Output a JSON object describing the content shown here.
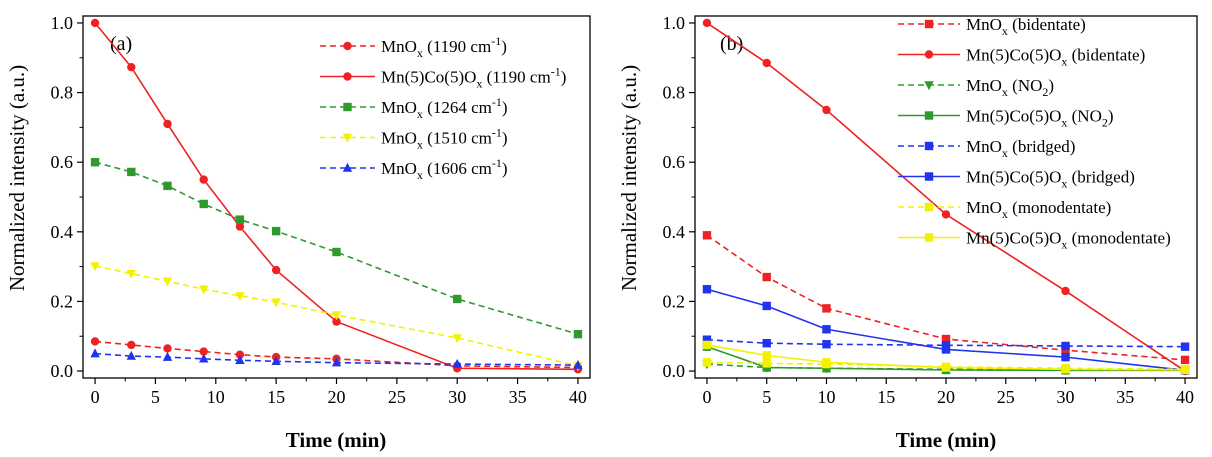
{
  "chart_data": [
    {
      "type": "line",
      "panel_label": "(a)",
      "xlabel": "Time (min)",
      "ylabel": "Normalized intensity (a.u.)",
      "xlim": [
        -1,
        41
      ],
      "ylim": [
        -0.02,
        1.02
      ],
      "xticks": [
        0,
        5,
        10,
        15,
        20,
        25,
        30,
        35,
        40
      ],
      "yticks": [
        0.0,
        0.2,
        0.4,
        0.6,
        0.8,
        1.0
      ],
      "xtick_labels": [
        "0",
        "5",
        "10",
        "15",
        "20",
        "25",
        "30",
        "35",
        "40"
      ],
      "ytick_labels": [
        "0.0",
        "0.2",
        "0.4",
        "0.6",
        "0.8",
        "1.0"
      ],
      "legend_position": "top-right",
      "series": [
        {
          "legend": {
            "base": "MnO",
            "sub": "x",
            "rest": " (1190 cm",
            "sup": "-1",
            "end": ")"
          },
          "color": "#ee2222",
          "dash": true,
          "marker": "circle",
          "points": [
            [
              0,
              0.085
            ],
            [
              3,
              0.075
            ],
            [
              6,
              0.065
            ],
            [
              9,
              0.056
            ],
            [
              12,
              0.047
            ],
            [
              15,
              0.04
            ],
            [
              20,
              0.035
            ],
            [
              30,
              0.015
            ],
            [
              40,
              0.01
            ]
          ]
        },
        {
          "legend": {
            "base": "Mn(5)Co(5)O",
            "sub": "x",
            "rest": " (1190 cm",
            "sup": "-1",
            "end": ")"
          },
          "color": "#ee2222",
          "dash": false,
          "marker": "circle",
          "points": [
            [
              0,
              1.0
            ],
            [
              3,
              0.873
            ],
            [
              6,
              0.71
            ],
            [
              9,
              0.55
            ],
            [
              12,
              0.415
            ],
            [
              15,
              0.29
            ],
            [
              20,
              0.142
            ],
            [
              30,
              0.008
            ],
            [
              40,
              0.005
            ]
          ]
        },
        {
          "legend": {
            "base": "MnO",
            "sub": "x",
            "rest": " (1264 cm",
            "sup": "-1",
            "end": ")"
          },
          "color": "#2e9a2e",
          "dash": true,
          "marker": "square",
          "points": [
            [
              0,
              0.6
            ],
            [
              3,
              0.572
            ],
            [
              6,
              0.532
            ],
            [
              9,
              0.48
            ],
            [
              12,
              0.435
            ],
            [
              15,
              0.402
            ],
            [
              20,
              0.342
            ],
            [
              30,
              0.207
            ],
            [
              40,
              0.106
            ]
          ]
        },
        {
          "legend": {
            "base": "MnO",
            "sub": "x",
            "rest": " (1510 cm",
            "sup": "-1",
            "end": ")"
          },
          "color": "#f2f200",
          "dash": true,
          "marker": "triangle-down",
          "points": [
            [
              0,
              0.302
            ],
            [
              3,
              0.28
            ],
            [
              6,
              0.258
            ],
            [
              9,
              0.235
            ],
            [
              12,
              0.216
            ],
            [
              15,
              0.198
            ],
            [
              20,
              0.161
            ],
            [
              30,
              0.095
            ],
            [
              40,
              0.015
            ]
          ]
        },
        {
          "legend": {
            "base": "MnO",
            "sub": "x",
            "rest": " (1606 cm",
            "sup": "-1",
            "end": ")"
          },
          "color": "#2233ee",
          "dash": true,
          "marker": "triangle-up",
          "points": [
            [
              0,
              0.05
            ],
            [
              3,
              0.043
            ],
            [
              6,
              0.04
            ],
            [
              9,
              0.035
            ],
            [
              12,
              0.031
            ],
            [
              15,
              0.028
            ],
            [
              20,
              0.024
            ],
            [
              30,
              0.02
            ],
            [
              40,
              0.017
            ]
          ]
        }
      ]
    },
    {
      "type": "line",
      "panel_label": "(b)",
      "xlabel": "Time (min)",
      "ylabel": "Normalized intensity (a.u.)",
      "xlim": [
        -1,
        41
      ],
      "ylim": [
        -0.02,
        1.02
      ],
      "xticks": [
        0,
        5,
        10,
        15,
        20,
        25,
        30,
        35,
        40
      ],
      "yticks": [
        0.0,
        0.2,
        0.4,
        0.6,
        0.8,
        1.0
      ],
      "xtick_labels": [
        "0",
        "5",
        "10",
        "15",
        "20",
        "25",
        "30",
        "35",
        "40"
      ],
      "ytick_labels": [
        "0.0",
        "0.2",
        "0.4",
        "0.6",
        "0.8",
        "1.0"
      ],
      "legend_position": "top-right",
      "series": [
        {
          "legend": {
            "base": "MnO",
            "sub": "x",
            "rest": " (bidentate)"
          },
          "color": "#ee2222",
          "dash": true,
          "marker": "square",
          "points": [
            [
              0,
              0.39
            ],
            [
              5,
              0.27
            ],
            [
              10,
              0.18
            ],
            [
              20,
              0.092
            ],
            [
              30,
              0.06
            ],
            [
              40,
              0.032
            ]
          ]
        },
        {
          "legend": {
            "base": "Mn(5)Co(5)O",
            "sub": "x",
            "rest": " (bidentate)"
          },
          "color": "#ee2222",
          "dash": false,
          "marker": "circle",
          "points": [
            [
              0,
              1.0
            ],
            [
              5,
              0.885
            ],
            [
              10,
              0.75
            ],
            [
              20,
              0.45
            ],
            [
              30,
              0.23
            ],
            [
              40,
              0.0
            ]
          ]
        },
        {
          "legend": {
            "base": "MnO",
            "sub": "x",
            "rest": " (NO",
            "sub2": "2",
            "end": ")"
          },
          "color": "#2e9a2e",
          "dash": true,
          "marker": "triangle-down",
          "points": [
            [
              0,
              0.02
            ],
            [
              5,
              0.01
            ],
            [
              10,
              0.008
            ],
            [
              20,
              0.005
            ],
            [
              30,
              0.004
            ],
            [
              40,
              0.003
            ]
          ]
        },
        {
          "legend": {
            "base": "Mn(5)Co(5)O",
            "sub": "x",
            "rest": " (NO",
            "sub2": "2",
            "end": ")"
          },
          "color": "#2e9a2e",
          "dash": false,
          "marker": "square",
          "points": [
            [
              0,
              0.07
            ],
            [
              5,
              0.01
            ],
            [
              10,
              0.008
            ],
            [
              20,
              0.003
            ],
            [
              30,
              0.002
            ],
            [
              40,
              0.002
            ]
          ]
        },
        {
          "legend": {
            "base": "MnO",
            "sub": "x",
            "rest": " (bridged)"
          },
          "color": "#2233ee",
          "dash": true,
          "marker": "square",
          "points": [
            [
              0,
              0.09
            ],
            [
              5,
              0.08
            ],
            [
              10,
              0.077
            ],
            [
              20,
              0.074
            ],
            [
              30,
              0.072
            ],
            [
              40,
              0.07
            ]
          ]
        },
        {
          "legend": {
            "base": "Mn(5)Co(5)O",
            "sub": "x",
            "rest": " (bridged)"
          },
          "color": "#2233ee",
          "dash": false,
          "marker": "square",
          "points": [
            [
              0,
              0.235
            ],
            [
              5,
              0.187
            ],
            [
              10,
              0.12
            ],
            [
              20,
              0.062
            ],
            [
              30,
              0.04
            ],
            [
              40,
              0.002
            ]
          ]
        },
        {
          "legend": {
            "base": "MnO",
            "sub": "x",
            "rest": " (monodentate)"
          },
          "color": "#f2f200",
          "dash": true,
          "marker": "square",
          "points": [
            [
              0,
              0.025
            ],
            [
              5,
              0.022
            ],
            [
              10,
              0.02
            ],
            [
              20,
              0.012
            ],
            [
              30,
              0.008
            ],
            [
              40,
              0.005
            ]
          ]
        },
        {
          "legend": {
            "base": "Mn(5)Co(5)O",
            "sub": "x",
            "rest": " (monodentate)"
          },
          "color": "#f2f200",
          "dash": false,
          "marker": "square",
          "points": [
            [
              0,
              0.075
            ],
            [
              5,
              0.045
            ],
            [
              10,
              0.025
            ],
            [
              20,
              0.01
            ],
            [
              30,
              0.005
            ],
            [
              40,
              0.003
            ]
          ]
        }
      ]
    }
  ]
}
